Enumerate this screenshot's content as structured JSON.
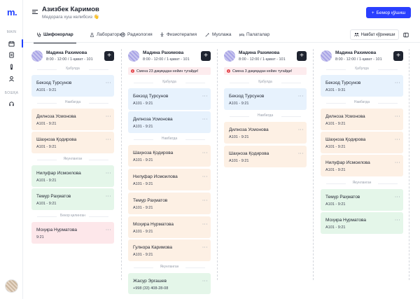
{
  "app": {
    "logo": "m."
  },
  "sidebar": {
    "main_label": "MAIN",
    "other_label": "БОШҚА"
  },
  "header": {
    "user_name": "Азизбек Каримов",
    "user_subtitle": "Медорага хуш келибсиз 👋",
    "new_patient_button": "Бемор қўшиш"
  },
  "tabs": [
    {
      "label": "Шифокорлар",
      "icon": "stethoscope-icon"
    },
    {
      "label": "Лаборатория",
      "icon": "lab-icon"
    },
    {
      "label": "Радиология",
      "icon": "radiology-icon"
    },
    {
      "label": "Физиотерапия",
      "icon": "physio-icon"
    },
    {
      "label": "Муолажа",
      "icon": "syringe-icon"
    },
    {
      "label": "Палаталар",
      "icon": "bed-icon"
    }
  ],
  "toolbar": {
    "queue_view_button": "Навбат кўриниши"
  },
  "columns": [
    {
      "doctor": "Мадина Рахимова",
      "schedule": "8:00 - 12:00 / 1-қават - 101",
      "alert": "",
      "sections": [
        {
          "label": "Қабулда",
          "cards": [
            {
              "name": "Бекзод Турсунов",
              "sub": "A101 - 9:21",
              "color": "blue"
            }
          ]
        },
        {
          "label": "Навбатда",
          "cards": [
            {
              "name": "Дилноза Усмонова",
              "sub": "A101 - 9:21",
              "color": "orange"
            },
            {
              "name": "Шаҳноза Қодирова",
              "sub": "A101 - 9:21",
              "color": "orange"
            }
          ]
        },
        {
          "label": "Якунланган",
          "cards": [
            {
              "name": "Нилуфар Исмоилова",
              "sub": "A101 - 9:21",
              "color": "green"
            },
            {
              "name": "Темур Раҳматов",
              "sub": "A101 - 9:21",
              "color": "green"
            }
          ]
        },
        {
          "label": "Бекор қилинган",
          "cards": [
            {
              "name": "Моҳира Нурматова",
              "sub": "9:21",
              "color": "red"
            }
          ]
        }
      ]
    },
    {
      "doctor": "Мадина Рахимова",
      "schedule": "8:00 - 12:00 / 1-қават - 101",
      "alert": "Смена 23 дақиқадан кейин тугайди!",
      "sections": [
        {
          "label": "Қабулда",
          "cards": [
            {
              "name": "Бекзод Турсунов",
              "sub": "A101 - 9:21",
              "color": "blue"
            },
            {
              "name": "Дилноза Усмонова",
              "sub": "A101 - 9:21",
              "color": "blue"
            }
          ]
        },
        {
          "label": "Навбатда",
          "cards": [
            {
              "name": "Шаҳноза Қодирова",
              "sub": "A101 - 9:21",
              "color": "orange"
            },
            {
              "name": "Нилуфар Исмоилова",
              "sub": "A101 - 9:21",
              "color": "orange"
            },
            {
              "name": "Темур Раҳматов",
              "sub": "A101 - 9:21",
              "color": "orange"
            },
            {
              "name": "Моҳира Нурматова",
              "sub": "A101 - 9:21",
              "color": "orange"
            },
            {
              "name": "Гулнора Каримова",
              "sub": "A101 - 9:21",
              "color": "orange"
            }
          ]
        },
        {
          "label": "Якунланган",
          "cards": [
            {
              "name": "Жасур Эргашев",
              "sub": "+998 (33) 408-28-08",
              "color": "green"
            }
          ]
        }
      ]
    },
    {
      "doctor": "Мадина Рахимова",
      "schedule": "8:00 - 12:00 / 1-қават - 101",
      "alert": "Смена 3 дақиқадан кейин тугайди!",
      "sections": [
        {
          "label": "Қабулда",
          "cards": [
            {
              "name": "Бекзод Турсунов",
              "sub": "A101 - 9:21",
              "color": "blue"
            }
          ]
        },
        {
          "label": "Навбатда",
          "cards": [
            {
              "name": "Дилноза Усмонова",
              "sub": "A101 - 9:21",
              "color": "orange"
            },
            {
              "name": "Шаҳноза Қодирова",
              "sub": "A101 - 9:21",
              "color": "orange"
            }
          ]
        }
      ]
    },
    {
      "doctor": "Мадина Рахимова",
      "schedule": "8:00 - 12:00 / 1-қават - 101",
      "alert": "",
      "sections": [
        {
          "label": "Қабулда",
          "cards": [
            {
              "name": "Бекзод Турсунов",
              "sub": "A101 - 9:31",
              "color": "blue"
            }
          ]
        },
        {
          "label": "Навбатда",
          "cards": [
            {
              "name": "Дилноза Усмонова",
              "sub": "A101 - 9:21",
              "color": "orange"
            },
            {
              "name": "Шаҳноза Қодирова",
              "sub": "A101 - 9:21",
              "color": "orange"
            },
            {
              "name": "Нилуфар Исмоилова",
              "sub": "A101 - 9:21",
              "color": "orange"
            }
          ]
        },
        {
          "label": "Якунланган",
          "cards": [
            {
              "name": "Темур Раҳматов",
              "sub": "A101 - 9:21",
              "color": "green"
            },
            {
              "name": "Моҳира Нурматова",
              "sub": "A101 - 9:21",
              "color": "green"
            }
          ]
        }
      ]
    }
  ],
  "colors": {
    "accent": "#2a3fff",
    "dark": "#1f2430"
  }
}
